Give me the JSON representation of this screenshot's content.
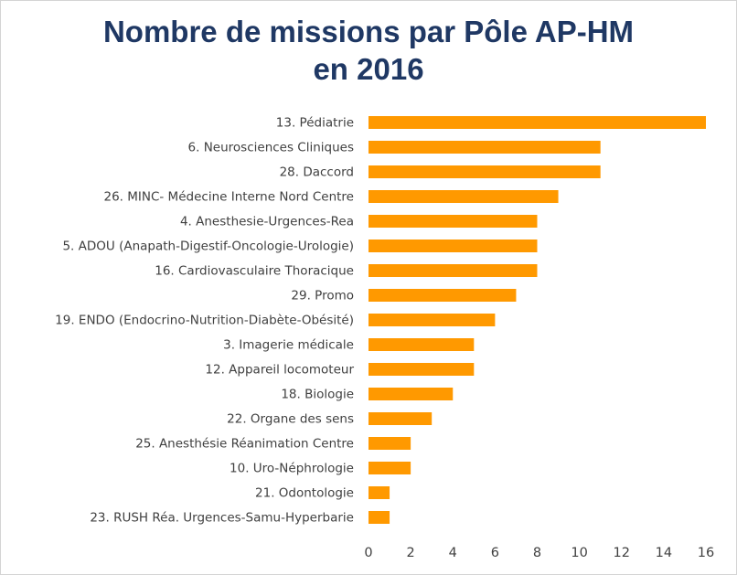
{
  "chart_data": {
    "type": "bar",
    "orientation": "horizontal",
    "title_lines": [
      "Nombre de missions par Pôle AP-HM",
      "en 2016"
    ],
    "categories": [
      "13. Pédiatrie",
      "6. Neurosciences Cliniques",
      "28. Daccord",
      "26. MINC- Médecine Interne Nord Centre",
      "4. Anesthesie-Urgences-Rea",
      "5. ADOU (Anapath-Digestif-Oncologie-Urologie)",
      "16. Cardiovasculaire Thoracique",
      "29. Promo",
      "19. ENDO (Endocrino-Nutrition-Diabète-Obésité)",
      "3. Imagerie médicale",
      "12. Appareil locomoteur",
      "18. Biologie",
      "22. Organe des sens",
      "25. Anesthésie Réanimation Centre",
      "10. Uro-Néphrologie",
      "21. Odontologie",
      "23. RUSH Réa. Urgences-Samu-Hyperbarie"
    ],
    "values": [
      16,
      11,
      11,
      9,
      8,
      8,
      8,
      7,
      6,
      5,
      5,
      4,
      3,
      2,
      2,
      1,
      1
    ],
    "xlim": [
      0,
      16
    ],
    "xticks": [
      0,
      2,
      4,
      6,
      8,
      10,
      12,
      14,
      16
    ],
    "grid": false,
    "legend": "none",
    "bar_color": "#ff9900",
    "title_color": "#1f3864"
  }
}
